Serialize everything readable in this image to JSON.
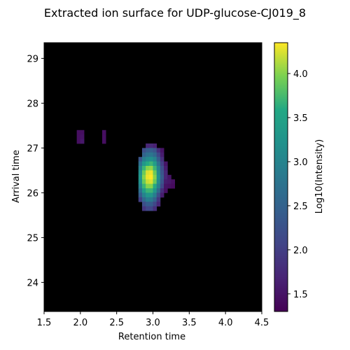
{
  "chart_data": {
    "type": "heatmap",
    "title": "Extracted ion surface for UDP-glucose-CJ019_8",
    "xlabel": "Retention time",
    "ylabel": "Arrival time",
    "colorbar_label": "Log10(Intensity)",
    "xlim": [
      1.5,
      4.5
    ],
    "ylim": [
      23.35,
      29.35
    ],
    "x_ticks": [
      1.5,
      2.0,
      2.5,
      3.0,
      3.5,
      4.0,
      4.5
    ],
    "x_tick_labels": [
      "1.5",
      "2.0",
      "2.5",
      "3.0",
      "3.5",
      "4.0",
      "4.5"
    ],
    "y_ticks": [
      24,
      25,
      26,
      27,
      28,
      29
    ],
    "y_tick_labels": [
      "24",
      "25",
      "26",
      "27",
      "28",
      "29"
    ],
    "colorbar_range": [
      1.3,
      4.35
    ],
    "colorbar_ticks": [
      1.5,
      2.0,
      2.5,
      3.0,
      3.5,
      4.0
    ],
    "colorbar_tick_labels": [
      "1.5",
      "2.0",
      "2.5",
      "3.0",
      "3.5",
      "4.0"
    ],
    "background_color": "#000000",
    "colormap": "viridis",
    "cell_width": 0.05,
    "cell_height": 0.1,
    "cells": [
      {
        "x": 1.95,
        "y": 27.3,
        "v": 1.45
      },
      {
        "x": 2.0,
        "y": 27.3,
        "v": 1.45
      },
      {
        "x": 1.95,
        "y": 27.2,
        "v": 1.45
      },
      {
        "x": 2.0,
        "y": 27.2,
        "v": 1.5
      },
      {
        "x": 1.95,
        "y": 27.1,
        "v": 1.45
      },
      {
        "x": 2.0,
        "y": 27.1,
        "v": 1.55
      },
      {
        "x": 2.3,
        "y": 27.3,
        "v": 1.45
      },
      {
        "x": 2.3,
        "y": 27.2,
        "v": 1.45
      },
      {
        "x": 2.3,
        "y": 27.1,
        "v": 1.45
      },
      {
        "x": 2.9,
        "y": 27.0,
        "v": 1.7
      },
      {
        "x": 2.95,
        "y": 27.0,
        "v": 1.75
      },
      {
        "x": 3.0,
        "y": 27.0,
        "v": 1.65
      },
      {
        "x": 2.85,
        "y": 26.9,
        "v": 2.2
      },
      {
        "x": 2.9,
        "y": 26.9,
        "v": 2.4
      },
      {
        "x": 2.95,
        "y": 26.9,
        "v": 2.45
      },
      {
        "x": 3.0,
        "y": 26.9,
        "v": 2.3
      },
      {
        "x": 3.05,
        "y": 26.9,
        "v": 1.8
      },
      {
        "x": 3.1,
        "y": 26.9,
        "v": 1.5
      },
      {
        "x": 2.85,
        "y": 26.8,
        "v": 2.5
      },
      {
        "x": 2.9,
        "y": 26.8,
        "v": 2.7
      },
      {
        "x": 2.95,
        "y": 26.8,
        "v": 2.8
      },
      {
        "x": 3.0,
        "y": 26.8,
        "v": 2.6
      },
      {
        "x": 3.05,
        "y": 26.8,
        "v": 2.1
      },
      {
        "x": 3.1,
        "y": 26.8,
        "v": 1.6
      },
      {
        "x": 2.8,
        "y": 26.7,
        "v": 2.3
      },
      {
        "x": 2.85,
        "y": 26.7,
        "v": 2.9
      },
      {
        "x": 2.9,
        "y": 26.7,
        "v": 3.1
      },
      {
        "x": 2.95,
        "y": 26.7,
        "v": 3.2
      },
      {
        "x": 3.0,
        "y": 26.7,
        "v": 3.0
      },
      {
        "x": 3.05,
        "y": 26.7,
        "v": 2.4
      },
      {
        "x": 3.1,
        "y": 26.7,
        "v": 1.8
      },
      {
        "x": 2.8,
        "y": 26.6,
        "v": 2.7
      },
      {
        "x": 2.85,
        "y": 26.6,
        "v": 3.3
      },
      {
        "x": 2.9,
        "y": 26.6,
        "v": 3.6
      },
      {
        "x": 2.95,
        "y": 26.6,
        "v": 3.7
      },
      {
        "x": 3.0,
        "y": 26.6,
        "v": 3.4
      },
      {
        "x": 3.05,
        "y": 26.6,
        "v": 2.7
      },
      {
        "x": 3.1,
        "y": 26.6,
        "v": 2.0
      },
      {
        "x": 3.15,
        "y": 26.6,
        "v": 1.5
      },
      {
        "x": 2.8,
        "y": 26.5,
        "v": 3.0
      },
      {
        "x": 2.85,
        "y": 26.5,
        "v": 3.7
      },
      {
        "x": 2.9,
        "y": 26.5,
        "v": 4.0
      },
      {
        "x": 2.95,
        "y": 26.5,
        "v": 4.05
      },
      {
        "x": 3.0,
        "y": 26.5,
        "v": 3.7
      },
      {
        "x": 3.05,
        "y": 26.5,
        "v": 3.0
      },
      {
        "x": 3.1,
        "y": 26.5,
        "v": 2.2
      },
      {
        "x": 3.15,
        "y": 26.5,
        "v": 1.6
      },
      {
        "x": 2.8,
        "y": 26.4,
        "v": 3.2
      },
      {
        "x": 2.85,
        "y": 26.4,
        "v": 3.9
      },
      {
        "x": 2.9,
        "y": 26.4,
        "v": 4.25
      },
      {
        "x": 2.95,
        "y": 26.4,
        "v": 4.3
      },
      {
        "x": 3.0,
        "y": 26.4,
        "v": 3.9
      },
      {
        "x": 3.05,
        "y": 26.4,
        "v": 3.1
      },
      {
        "x": 3.1,
        "y": 26.4,
        "v": 2.3
      },
      {
        "x": 3.15,
        "y": 26.4,
        "v": 1.7
      },
      {
        "x": 2.8,
        "y": 26.3,
        "v": 3.3
      },
      {
        "x": 2.85,
        "y": 26.3,
        "v": 4.0
      },
      {
        "x": 2.9,
        "y": 26.3,
        "v": 4.3
      },
      {
        "x": 2.95,
        "y": 26.3,
        "v": 4.35
      },
      {
        "x": 3.0,
        "y": 26.3,
        "v": 4.0
      },
      {
        "x": 3.05,
        "y": 26.3,
        "v": 3.2
      },
      {
        "x": 3.1,
        "y": 26.3,
        "v": 2.4
      },
      {
        "x": 3.15,
        "y": 26.3,
        "v": 1.7
      },
      {
        "x": 3.2,
        "y": 26.3,
        "v": 1.5
      },
      {
        "x": 2.8,
        "y": 26.2,
        "v": 3.2
      },
      {
        "x": 2.85,
        "y": 26.2,
        "v": 3.9
      },
      {
        "x": 2.9,
        "y": 26.2,
        "v": 4.2
      },
      {
        "x": 2.95,
        "y": 26.2,
        "v": 4.25
      },
      {
        "x": 3.0,
        "y": 26.2,
        "v": 3.9
      },
      {
        "x": 3.05,
        "y": 26.2,
        "v": 3.1
      },
      {
        "x": 3.1,
        "y": 26.2,
        "v": 2.3
      },
      {
        "x": 3.15,
        "y": 26.2,
        "v": 1.6
      },
      {
        "x": 3.2,
        "y": 26.2,
        "v": 1.55
      },
      {
        "x": 3.25,
        "y": 26.2,
        "v": 1.45
      },
      {
        "x": 2.8,
        "y": 26.1,
        "v": 3.0
      },
      {
        "x": 2.85,
        "y": 26.1,
        "v": 3.7
      },
      {
        "x": 2.9,
        "y": 26.1,
        "v": 4.0
      },
      {
        "x": 2.95,
        "y": 26.1,
        "v": 4.0
      },
      {
        "x": 3.0,
        "y": 26.1,
        "v": 3.6
      },
      {
        "x": 3.05,
        "y": 26.1,
        "v": 2.9
      },
      {
        "x": 3.1,
        "y": 26.1,
        "v": 2.1
      },
      {
        "x": 3.15,
        "y": 26.1,
        "v": 1.5
      },
      {
        "x": 3.2,
        "y": 26.1,
        "v": 1.45
      },
      {
        "x": 3.25,
        "y": 26.1,
        "v": 1.4
      },
      {
        "x": 2.8,
        "y": 26.0,
        "v": 2.7
      },
      {
        "x": 2.85,
        "y": 26.0,
        "v": 3.4
      },
      {
        "x": 2.9,
        "y": 26.0,
        "v": 3.7
      },
      {
        "x": 2.95,
        "y": 26.0,
        "v": 3.7
      },
      {
        "x": 3.0,
        "y": 26.0,
        "v": 3.3
      },
      {
        "x": 3.05,
        "y": 26.0,
        "v": 2.6
      },
      {
        "x": 3.1,
        "y": 26.0,
        "v": 1.8
      },
      {
        "x": 3.15,
        "y": 26.0,
        "v": 1.45
      },
      {
        "x": 2.8,
        "y": 25.9,
        "v": 2.4
      },
      {
        "x": 2.85,
        "y": 25.9,
        "v": 3.0
      },
      {
        "x": 2.9,
        "y": 25.9,
        "v": 3.3
      },
      {
        "x": 2.95,
        "y": 25.9,
        "v": 3.3
      },
      {
        "x": 3.0,
        "y": 25.9,
        "v": 2.9
      },
      {
        "x": 3.05,
        "y": 25.9,
        "v": 2.2
      },
      {
        "x": 3.1,
        "y": 25.9,
        "v": 1.6
      },
      {
        "x": 2.8,
        "y": 25.8,
        "v": 2.0
      },
      {
        "x": 2.85,
        "y": 25.8,
        "v": 2.6
      },
      {
        "x": 2.9,
        "y": 25.8,
        "v": 2.9
      },
      {
        "x": 2.95,
        "y": 25.8,
        "v": 2.85
      },
      {
        "x": 3.0,
        "y": 25.8,
        "v": 2.5
      },
      {
        "x": 3.05,
        "y": 25.8,
        "v": 1.9
      },
      {
        "x": 2.85,
        "y": 25.7,
        "v": 2.2
      },
      {
        "x": 2.9,
        "y": 25.7,
        "v": 2.4
      },
      {
        "x": 2.95,
        "y": 25.7,
        "v": 2.4
      },
      {
        "x": 3.0,
        "y": 25.7,
        "v": 2.1
      },
      {
        "x": 3.05,
        "y": 25.7,
        "v": 1.7
      },
      {
        "x": 2.85,
        "y": 25.6,
        "v": 1.9
      },
      {
        "x": 2.9,
        "y": 25.6,
        "v": 2.1
      },
      {
        "x": 2.95,
        "y": 25.6,
        "v": 2.1
      },
      {
        "x": 3.0,
        "y": 25.6,
        "v": 1.8
      }
    ]
  }
}
